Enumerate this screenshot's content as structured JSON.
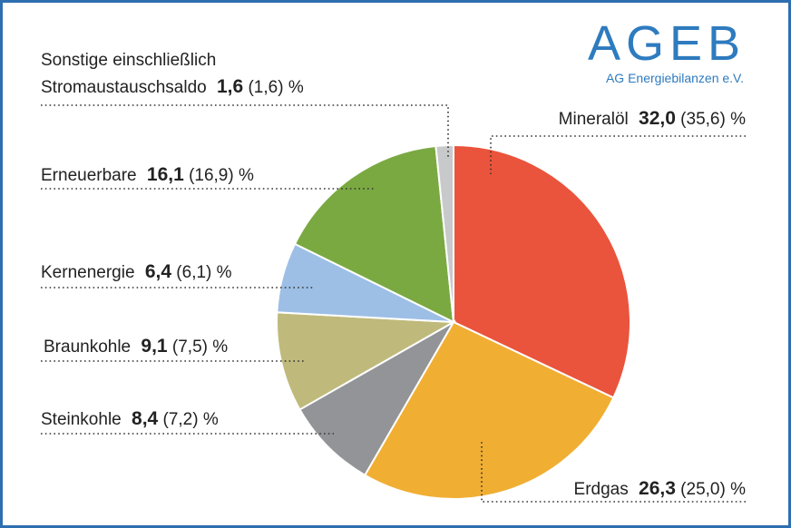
{
  "logo": {
    "title": "AGEB",
    "subtitle": "AG Energiebilanzen e.V."
  },
  "colors": {
    "frame": "#2e6fb0",
    "logo": "#2e7bbf"
  },
  "chart_data": {
    "type": "pie",
    "start": "top",
    "direction": "clockwise",
    "unit": "%",
    "slices": [
      {
        "name": "Mineralöl",
        "value": 32.0,
        "value_label": "32,0",
        "previous_label": "(35,6)",
        "color": "#ea543c"
      },
      {
        "name": "Erdgas",
        "value": 26.3,
        "value_label": "26,3",
        "previous_label": "(25,0)",
        "color": "#f0ae33"
      },
      {
        "name": "Steinkohle",
        "value": 8.4,
        "value_label": "8,4",
        "previous_label": "(7,2)",
        "color": "#939497"
      },
      {
        "name": "Braunkohle",
        "value": 9.1,
        "value_label": "9,1",
        "previous_label": "(7,5)",
        "color": "#bfba7b"
      },
      {
        "name": "Kernenergie",
        "value": 6.4,
        "value_label": "6,4",
        "previous_label": "(6,1)",
        "color": "#9dbfe6"
      },
      {
        "name": "Erneuerbare",
        "value": 16.1,
        "value_label": "16,1",
        "previous_label": "(16,9)",
        "color": "#7aa942"
      },
      {
        "name": "Sonstige einschließlich Stromaustauschsaldo",
        "name_line1": "Sonstige einschließlich",
        "name_line2": "Stromaustauschsaldo",
        "value": 1.6,
        "value_label": "1,6",
        "previous_label": "(1,6)",
        "color": "#c8c9cb"
      }
    ]
  }
}
